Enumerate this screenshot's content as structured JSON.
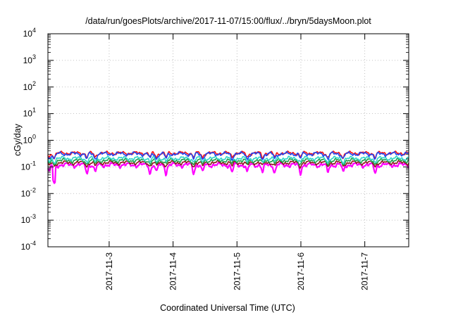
{
  "chart_data": {
    "type": "line",
    "title": "/data/run/goesPlots/archive/2017-11-07/15:00/flux/../bryn/5daysMoon.plot",
    "xlabel": "Coordinated Universal Time (UTC)",
    "ylabel": "cGy/day",
    "yscale": "log",
    "ylim": [
      0.0001,
      10000
    ],
    "xlim": [
      "2017-11-02 01:00",
      "2017-11-07 16:30"
    ],
    "grid": true,
    "x_ticks": [
      {
        "date": "2017-11-03 00:00",
        "label": "2017-11-3"
      },
      {
        "date": "2017-11-04 00:00",
        "label": "2017-11-4"
      },
      {
        "date": "2017-11-05 00:00",
        "label": "2017-11-5"
      },
      {
        "date": "2017-11-06 00:00",
        "label": "2017-11-6"
      },
      {
        "date": "2017-11-07 00:00",
        "label": "2017-11-7"
      }
    ],
    "y_ticks": [
      {
        "value": 0.0001,
        "base": "10",
        "exp": "-4"
      },
      {
        "value": 0.001,
        "base": "10",
        "exp": "-3"
      },
      {
        "value": 0.01,
        "base": "10",
        "exp": "-2"
      },
      {
        "value": 0.1,
        "base": "10",
        "exp": "-1"
      },
      {
        "value": 1,
        "base": "10",
        "exp": "0"
      },
      {
        "value": 10,
        "base": "10",
        "exp": "1"
      },
      {
        "value": 100,
        "base": "10",
        "exp": "2"
      },
      {
        "value": 1000,
        "base": "10",
        "exp": "3"
      },
      {
        "value": 10000,
        "base": "10",
        "exp": "4"
      }
    ],
    "series": [
      {
        "color": "#ff00ff",
        "base": 0.12,
        "amp": 0.12,
        "dip": 0.5
      },
      {
        "color": "#8b1a1a",
        "base": 0.145,
        "amp": 0.1,
        "dip": 0.25
      },
      {
        "color": "#1e9e4a",
        "base": 0.175,
        "amp": 0.1,
        "dip": 0.25
      },
      {
        "color": "#30d5c8",
        "base": 0.21,
        "amp": 0.1,
        "dip": 0.25
      },
      {
        "color": "#ff1010",
        "base": 0.33,
        "amp": 0.09,
        "dip": 0.3
      },
      {
        "color": "#2244ee",
        "base": 0.31,
        "amp": 0.1,
        "dip": 0.35
      }
    ]
  }
}
